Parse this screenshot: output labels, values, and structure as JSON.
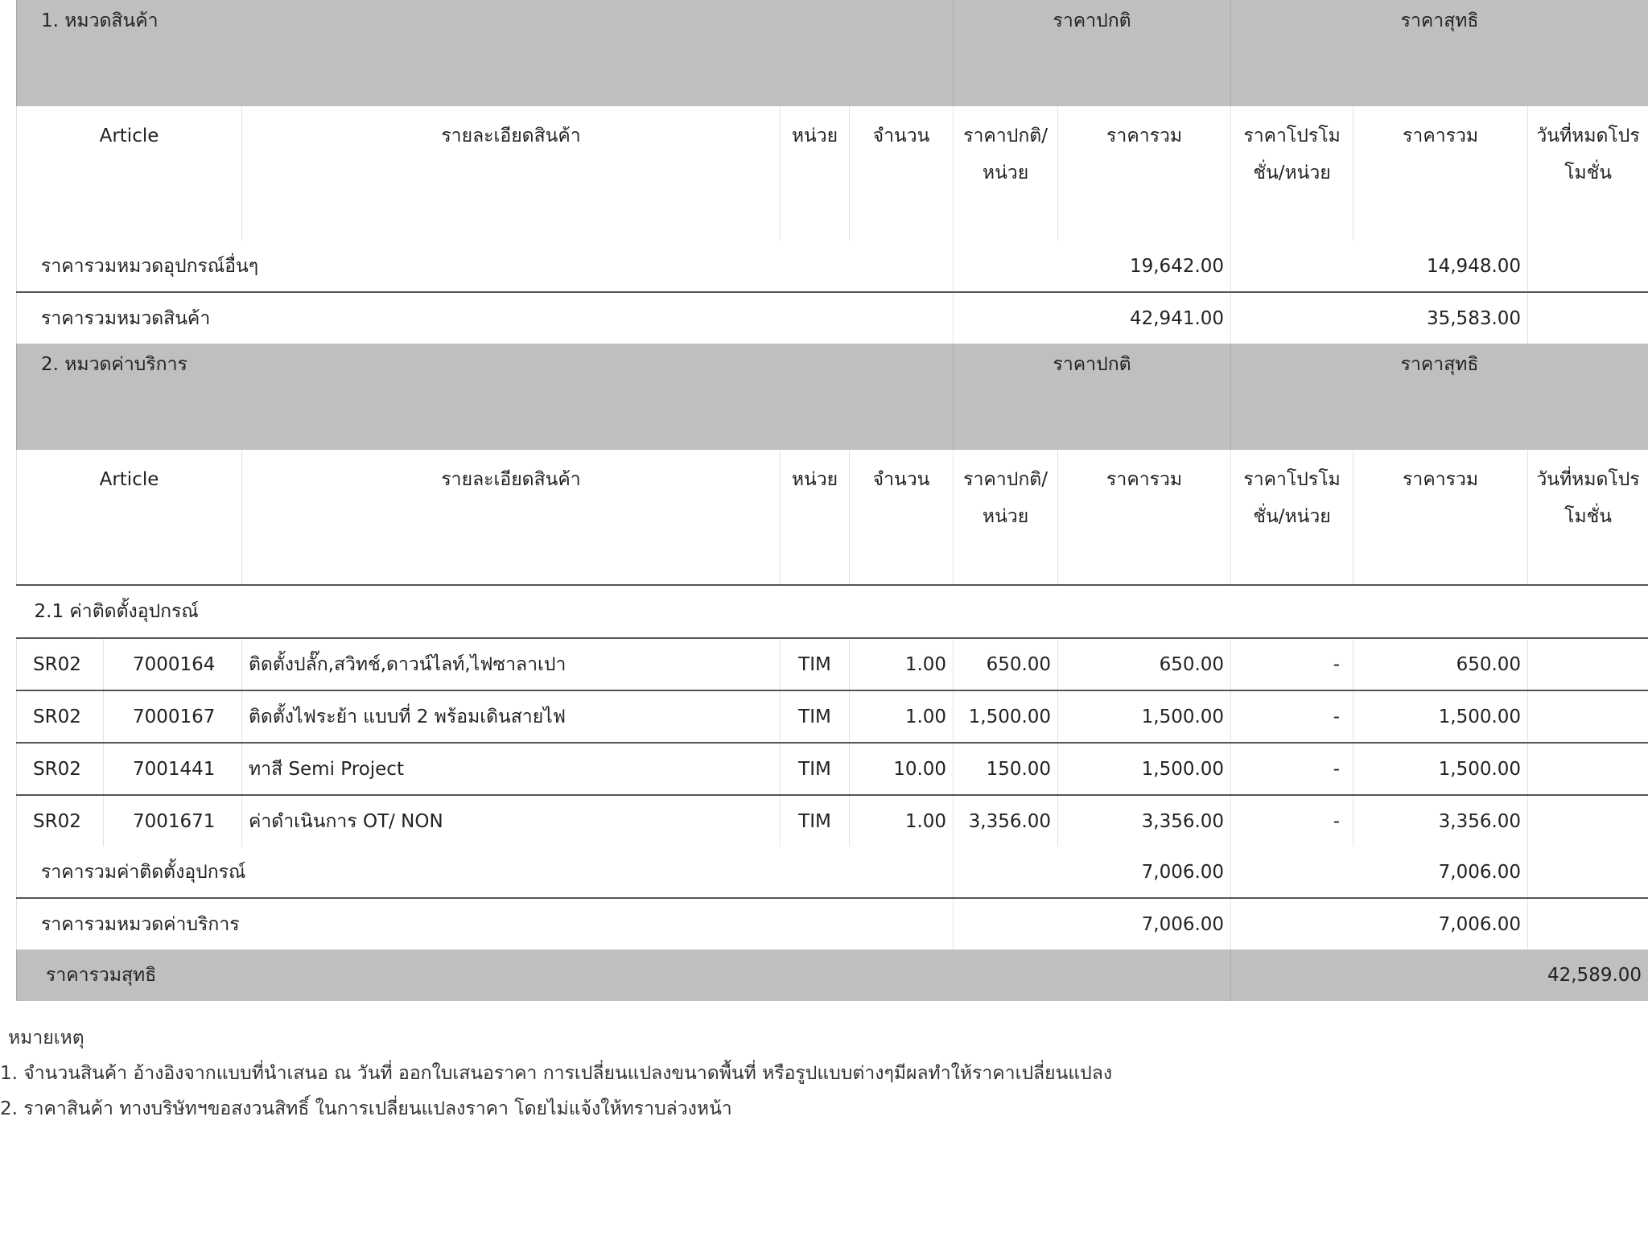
{
  "section1": {
    "title": "1. หมวดสินค้า",
    "group_regular": "ราคาปกติ",
    "group_net": "ราคาสุทธิ",
    "columns": [
      "Article",
      "รายละเอียดสินค้า",
      "หน่วย",
      "จำนวน",
      "ราคาปกติ/หน่วย",
      "ราคารวม",
      "ราคาโปรโมชั่น/หน่วย",
      "ราคารวม",
      "วันที่หมดโปรโมชั่น"
    ],
    "subtotal_other": {
      "label": "ราคารวมหมวดอุปกรณ์อื่นๆ",
      "regular_total": "19,642.00",
      "net_total": "14,948.00"
    },
    "subtotal_products": {
      "label": "ราคารวมหมวดสินค้า",
      "regular_total": "42,941.00",
      "net_total": "35,583.00"
    }
  },
  "section2": {
    "title": "2. หมวดค่าบริการ",
    "group_regular": "ราคาปกติ",
    "group_net": "ราคาสุทธิ",
    "columns": [
      "Article",
      "รายละเอียดสินค้า",
      "หน่วย",
      "จำนวน",
      "ราคาปกติ/หน่วย",
      "ราคารวม",
      "ราคาโปรโมชั่น/หน่วย",
      "ราคารวม",
      "วันที่หมดโปรโมชั่น"
    ],
    "subsection": "2.1 ค่าติดตั้งอุปกรณ์",
    "rows": [
      {
        "code": "SR02",
        "article": "7000164",
        "desc": "ติดตั้งปลั๊ก,สวิทช์,ดาวน์ไลท์,ไฟซาลาเปา",
        "unit": "TIM",
        "qty": "1.00",
        "unit_price": "650.00",
        "total": "650.00",
        "promo": "-",
        "net_total": "650.00",
        "promo_end": ""
      },
      {
        "code": "SR02",
        "article": "7000167",
        "desc": "ติดตั้งไฟระย้า แบบที่ 2 พร้อมเดินสายไฟ",
        "unit": "TIM",
        "qty": "1.00",
        "unit_price": "1,500.00",
        "total": "1,500.00",
        "promo": "-",
        "net_total": "1,500.00",
        "promo_end": ""
      },
      {
        "code": "SR02",
        "article": "7001441",
        "desc": "ทาสี Semi Project",
        "unit": "TIM",
        "qty": "10.00",
        "unit_price": "150.00",
        "total": "1,500.00",
        "promo": "-",
        "net_total": "1,500.00",
        "promo_end": ""
      },
      {
        "code": "SR02",
        "article": "7001671",
        "desc": "ค่าดำเนินการ OT/ NON",
        "unit": "TIM",
        "qty": "1.00",
        "unit_price": "3,356.00",
        "total": "3,356.00",
        "promo": "-",
        "net_total": "3,356.00",
        "promo_end": ""
      }
    ],
    "subtotal_install": {
      "label": "ราคารวมค่าติดตั้งอุปกรณ์",
      "regular_total": "7,006.00",
      "net_total": "7,006.00"
    },
    "subtotal_service": {
      "label": "ราคารวมหมวดค่าบริการ",
      "regular_total": "7,006.00",
      "net_total": "7,006.00"
    }
  },
  "grand_total": {
    "label": "ราคารวมสุทธิ",
    "value": "42,589.00"
  },
  "notes": {
    "heading": "หมายเหตุ",
    "items": [
      "1. จำนวนสินค้า อ้างอิงจากแบบที่นำเสนอ ณ วันที่ ออกใบเสนอราคา การเปลี่ยนแปลงขนาดพื้นที่ หรือรูปแบบต่างๆมีผลทำให้ราคาเปลี่ยนแปลง",
      "2. ราคาสินค้า ทางบริษัทฯขอสงวนสิทธิ์ ในการเปลี่ยนแปลงราคา โดยไม่แจ้งให้ทราบล่วงหน้า"
    ]
  }
}
